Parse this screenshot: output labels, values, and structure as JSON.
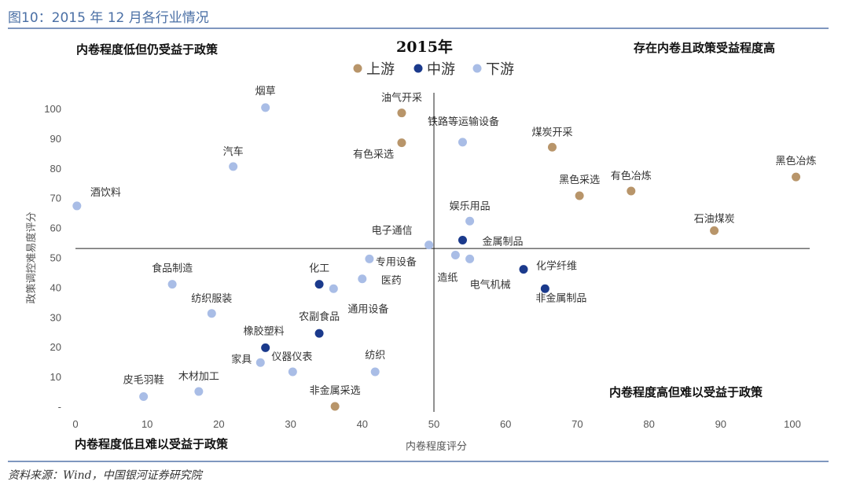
{
  "figure_title": "图10：2015 年 12 月各行业情况",
  "source": "资料来源：Wind，中国银河证券研究院",
  "chart_data": {
    "type": "scatter",
    "title": "2015年",
    "xlabel": "内卷程度评分",
    "ylabel": "政策调控难易度评分",
    "xlim": [
      0,
      100
    ],
    "ylim": [
      0,
      100
    ],
    "x_ticks": [
      "0",
      "10",
      "20",
      "30",
      "40",
      "50",
      "60",
      "70",
      "80",
      "90",
      "100"
    ],
    "y_ticks": [
      "-",
      "10",
      "20",
      "30",
      "40",
      "50",
      "60",
      "70",
      "80",
      "90",
      "100"
    ],
    "divider_x": 50,
    "divider_y": 53,
    "quadrant_labels": {
      "top_left": "内卷程度低但仍受益于政策",
      "top_right": "存在内卷且政策受益程度高",
      "bottom_left": "内卷程度低且难以受益于政策",
      "bottom_right": "内卷程度高但难以受益于政策"
    },
    "legend": [
      {
        "name": "上游",
        "color": "#b8956a"
      },
      {
        "name": "中游",
        "color": "#1b3a8c"
      },
      {
        "name": "下游",
        "color": "#a9bde6"
      }
    ],
    "points": [
      {
        "label": "烟草",
        "x": 26.5,
        "y": 100.3,
        "group": "下游"
      },
      {
        "label": "油气开采",
        "x": 45.5,
        "y": 98.5,
        "group": "上游"
      },
      {
        "label": "铁路等运输设备",
        "x": 54,
        "y": 88.7,
        "group": "下游"
      },
      {
        "label": "有色采选",
        "x": 45.5,
        "y": 88.5,
        "group": "上游"
      },
      {
        "label": "煤炭开采",
        "x": 66.5,
        "y": 87,
        "group": "上游"
      },
      {
        "label": "汽车",
        "x": 22,
        "y": 80.5,
        "group": "下游"
      },
      {
        "label": "黑色冶炼",
        "x": 100.5,
        "y": 77,
        "group": "上游"
      },
      {
        "label": "有色冶炼",
        "x": 77.5,
        "y": 72.3,
        "group": "上游"
      },
      {
        "label": "黑色采选",
        "x": 70.3,
        "y": 70.7,
        "group": "上游"
      },
      {
        "label": "酒饮料",
        "x": 0.2,
        "y": 67.3,
        "group": "下游"
      },
      {
        "label": "娱乐用品",
        "x": 55,
        "y": 62.2,
        "group": "下游"
      },
      {
        "label": "石油煤炭",
        "x": 89.1,
        "y": 59,
        "group": "上游"
      },
      {
        "label": "金属制品",
        "x": 54,
        "y": 55.8,
        "group": "中游"
      },
      {
        "label": "电子通信",
        "x": 49.3,
        "y": 54.2,
        "group": "下游"
      },
      {
        "label": "造纸",
        "x": 53,
        "y": 50.8,
        "group": "下游"
      },
      {
        "label": "专用设备",
        "x": 41,
        "y": 49.5,
        "group": "下游"
      },
      {
        "label": "电气机械",
        "x": 55,
        "y": 49.5,
        "group": "下游"
      },
      {
        "label": "化学纤维",
        "x": 62.5,
        "y": 46,
        "group": "中游"
      },
      {
        "label": "医药",
        "x": 40,
        "y": 42.8,
        "group": "下游"
      },
      {
        "label": "化工",
        "x": 34,
        "y": 41,
        "group": "中游"
      },
      {
        "label": "食品制造",
        "x": 13.5,
        "y": 41,
        "group": "下游"
      },
      {
        "label": "通用设备",
        "x": 36,
        "y": 39.5,
        "group": "下游"
      },
      {
        "label": "非金属制品",
        "x": 65.5,
        "y": 39.5,
        "group": "中游"
      },
      {
        "label": "纺织服装",
        "x": 19,
        "y": 31.2,
        "group": "下游"
      },
      {
        "label": "农副食品",
        "x": 34,
        "y": 24.5,
        "group": "中游"
      },
      {
        "label": "橡胶塑料",
        "x": 26.5,
        "y": 19.7,
        "group": "中游"
      },
      {
        "label": "家具",
        "x": 25.8,
        "y": 14.7,
        "group": "下游"
      },
      {
        "label": "仪器仪表",
        "x": 30.3,
        "y": 11.6,
        "group": "下游"
      },
      {
        "label": "纺织",
        "x": 41.8,
        "y": 11.6,
        "group": "下游"
      },
      {
        "label": "木材加工",
        "x": 17.2,
        "y": 5,
        "group": "下游"
      },
      {
        "label": "皮毛羽鞋",
        "x": 9.5,
        "y": 3.3,
        "group": "下游"
      },
      {
        "label": "非金属采选",
        "x": 36.2,
        "y": 0,
        "group": "上游"
      }
    ]
  }
}
